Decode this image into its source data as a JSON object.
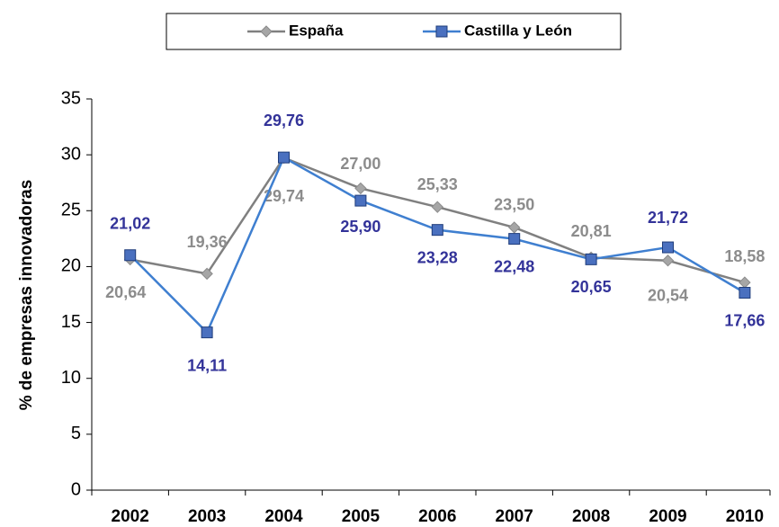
{
  "chart_data": {
    "type": "line",
    "categories": [
      "2002",
      "2003",
      "2004",
      "2005",
      "2006",
      "2007",
      "2008",
      "2009",
      "2010"
    ],
    "y_label": "% de empresas innovadoras",
    "ylim": [
      0,
      35
    ],
    "yticks": [
      0,
      5,
      10,
      15,
      20,
      25,
      30,
      35
    ],
    "legend": "top",
    "series": [
      {
        "name": "España",
        "color": "#808080",
        "marker_color": "#a6a6a6",
        "label_color": "#8c8c8c",
        "marker": "diamond",
        "values": [
          20.64,
          19.36,
          29.74,
          27.0,
          25.33,
          23.5,
          20.81,
          20.54,
          18.58
        ],
        "value_labels": [
          "20,64",
          "19,36",
          "29,74",
          "27,00",
          "25,33",
          "23,50",
          "20,81",
          "20,54",
          "18,58"
        ]
      },
      {
        "name": "Castilla y León",
        "color": "#3f7fd0",
        "marker_color": "#4a70bf",
        "label_color": "#333399",
        "marker": "square",
        "values": [
          21.02,
          14.11,
          29.76,
          25.9,
          23.28,
          22.48,
          20.65,
          21.72,
          17.66
        ],
        "value_labels": [
          "21,02",
          "14,11",
          "29,76",
          "25,90",
          "23,28",
          "22,48",
          "20,65",
          "21,72",
          "17,66"
        ]
      }
    ]
  }
}
